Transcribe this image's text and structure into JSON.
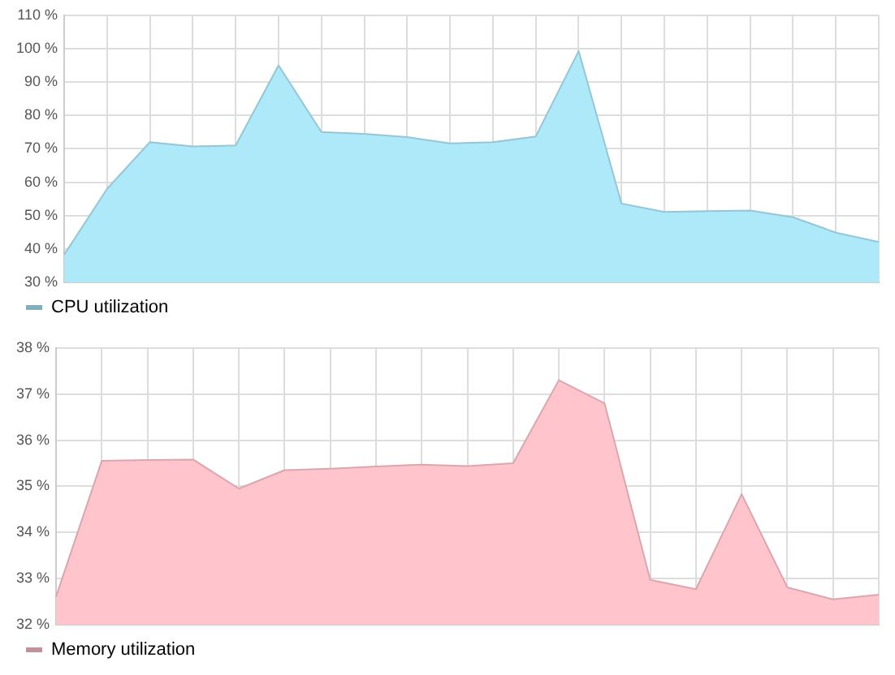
{
  "chart_data": [
    {
      "type": "area",
      "categories": [
        null,
        null,
        null,
        null,
        null,
        null,
        null,
        null,
        null,
        null,
        null,
        null,
        null,
        null,
        null,
        null,
        null,
        null,
        null,
        null
      ],
      "series": [
        {
          "name": "CPU utilization",
          "color": "#aee9fa",
          "values": [
            38.3,
            58,
            72,
            70.7,
            71,
            95,
            75,
            74.5,
            73.5,
            71.6,
            72,
            73.7,
            99.3,
            53.6,
            51.1,
            51.3,
            51.5,
            49.5,
            44.9,
            42.1
          ]
        }
      ],
      "ylim": [
        30,
        110
      ],
      "yticks": [
        {
          "value": 30,
          "label": "30 %"
        },
        {
          "value": 40,
          "label": "40 %"
        },
        {
          "value": 50,
          "label": "50 %"
        },
        {
          "value": 60,
          "label": "60 %"
        },
        {
          "value": 70,
          "label": "70 %"
        },
        {
          "value": 80,
          "label": "80 %"
        },
        {
          "value": 90,
          "label": "90 %"
        },
        {
          "value": 100,
          "label": "100 %"
        },
        {
          "value": 110,
          "label": "110 %"
        }
      ],
      "grid": true,
      "legend": "bottom"
    },
    {
      "type": "area",
      "categories": [
        null,
        null,
        null,
        null,
        null,
        null,
        null,
        null,
        null,
        null,
        null,
        null,
        null,
        null,
        null,
        null,
        null,
        null,
        null
      ],
      "series": [
        {
          "name": "Memory utilization",
          "color": "#ffc4cc",
          "values": [
            32.61,
            35.55,
            35.57,
            35.58,
            34.95,
            35.35,
            35.38,
            35.43,
            35.47,
            35.44,
            35.5,
            37.3,
            36.8,
            32.97,
            32.77,
            34.83,
            32.81,
            32.55,
            32.65
          ]
        }
      ],
      "ylim": [
        32,
        38
      ],
      "yticks": [
        {
          "value": 32,
          "label": "32 %"
        },
        {
          "value": 33,
          "label": "33 %"
        },
        {
          "value": 34,
          "label": "34 %"
        },
        {
          "value": 35,
          "label": "35 %"
        },
        {
          "value": 36,
          "label": "36 %"
        },
        {
          "value": 37,
          "label": "37 %"
        },
        {
          "value": 38,
          "label": "38 %"
        }
      ],
      "grid": true,
      "legend": "bottom"
    }
  ]
}
